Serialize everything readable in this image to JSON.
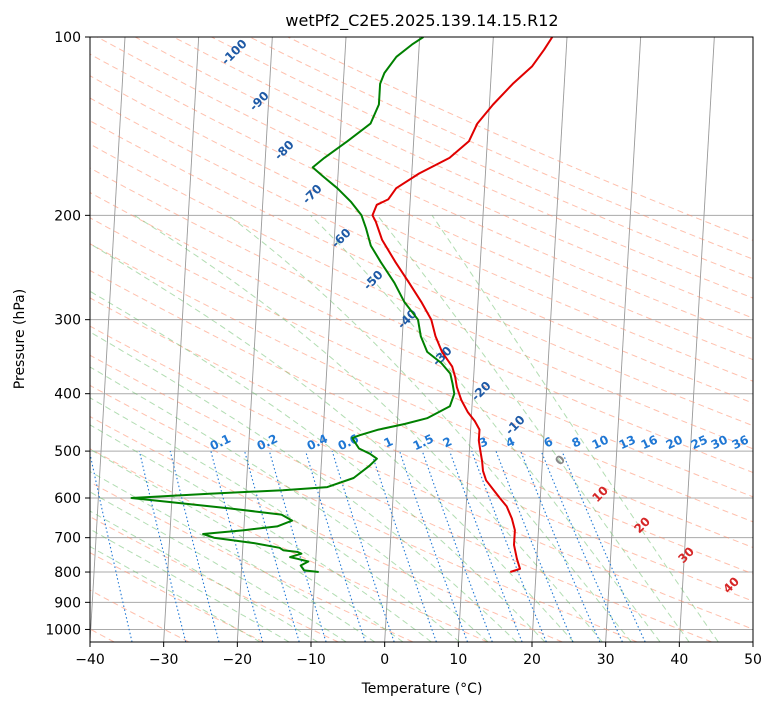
{
  "chart_data": {
    "type": "line",
    "title": "wetPf2_C2E5.2025.139.14.15.R12",
    "xlabel": "Temperature (°C)",
    "ylabel": "Pressure (hPa)",
    "xlim": [
      -40,
      50
    ],
    "ylim": [
      1050,
      100
    ],
    "y_scale": "log",
    "grid": true,
    "x_ticks": [
      -40,
      -30,
      -20,
      -10,
      0,
      10,
      20,
      30,
      40,
      50
    ],
    "y_ticks": [
      100,
      200,
      300,
      400,
      500,
      600,
      700,
      800,
      900,
      1000
    ],
    "series": [
      {
        "color": "#e00000",
        "points": [
          [
            16.5,
            800
          ],
          [
            17.8,
            790
          ],
          [
            17.3,
            760
          ],
          [
            16.8,
            720
          ],
          [
            16.8,
            680
          ],
          [
            16.3,
            650
          ],
          [
            15.5,
            620
          ],
          [
            14.5,
            600
          ],
          [
            13.5,
            580
          ],
          [
            12.5,
            560
          ],
          [
            12.0,
            540
          ],
          [
            11.8,
            520
          ],
          [
            11.5,
            500
          ],
          [
            11.2,
            480
          ],
          [
            11.2,
            460
          ],
          [
            10.5,
            445
          ],
          [
            9.5,
            430
          ],
          [
            8.5,
            410
          ],
          [
            7.8,
            390
          ],
          [
            7.5,
            375
          ],
          [
            7.0,
            360
          ],
          [
            5.5,
            340
          ],
          [
            4.5,
            320
          ],
          [
            3.8,
            300
          ],
          [
            2.3,
            280
          ],
          [
            0.5,
            260
          ],
          [
            -1.5,
            240
          ],
          [
            -3.5,
            220
          ],
          [
            -4.5,
            205
          ],
          [
            -5.0,
            200
          ],
          [
            -4.5,
            192
          ],
          [
            -3.0,
            188
          ],
          [
            -2.0,
            180
          ],
          [
            1.0,
            170
          ],
          [
            5.0,
            160
          ],
          [
            7.5,
            150
          ],
          [
            8.5,
            140
          ],
          [
            10.5,
            130
          ],
          [
            13.0,
            120
          ],
          [
            15.5,
            112
          ],
          [
            17.0,
            105
          ],
          [
            18.0,
            100
          ]
        ]
      },
      {
        "color": "#008000",
        "points": [
          [
            -9.5,
            800
          ],
          [
            -11.5,
            795
          ],
          [
            -12.0,
            780
          ],
          [
            -11.0,
            768
          ],
          [
            -12.5,
            760
          ],
          [
            -13.5,
            755
          ],
          [
            -12.0,
            745
          ],
          [
            -12.5,
            740
          ],
          [
            -14.5,
            735
          ],
          [
            -15.0,
            728
          ],
          [
            -18.5,
            715
          ],
          [
            -24.0,
            700
          ],
          [
            -25.5,
            690
          ],
          [
            -20.0,
            680
          ],
          [
            -15.5,
            670
          ],
          [
            -13.5,
            655
          ],
          [
            -15.0,
            640
          ],
          [
            -22.0,
            625
          ],
          [
            -30.0,
            610
          ],
          [
            -35.5,
            600
          ],
          [
            -25.0,
            590
          ],
          [
            -15.0,
            582
          ],
          [
            -9.0,
            575
          ],
          [
            -5.5,
            555
          ],
          [
            -3.5,
            530
          ],
          [
            -2.5,
            515
          ],
          [
            -3.5,
            505
          ],
          [
            -5.0,
            495
          ],
          [
            -5.5,
            485
          ],
          [
            -6.0,
            475
          ],
          [
            -5.0,
            470
          ],
          [
            -2.5,
            460
          ],
          [
            1.0,
            450
          ],
          [
            4.0,
            440
          ],
          [
            7.0,
            420
          ],
          [
            7.5,
            400
          ],
          [
            7.2,
            385
          ],
          [
            6.8,
            370
          ],
          [
            5.5,
            355
          ],
          [
            3.5,
            340
          ],
          [
            2.5,
            320
          ],
          [
            2.0,
            300
          ],
          [
            0.0,
            280
          ],
          [
            -1.5,
            260
          ],
          [
            -3.5,
            240
          ],
          [
            -5.0,
            225
          ],
          [
            -5.8,
            210
          ],
          [
            -6.5,
            200
          ],
          [
            -8.0,
            190
          ],
          [
            -10.0,
            180
          ],
          [
            -12.0,
            172
          ],
          [
            -13.5,
            166
          ],
          [
            -12.0,
            160
          ],
          [
            -9.0,
            150
          ],
          [
            -6.0,
            140
          ],
          [
            -5.0,
            130
          ],
          [
            -5.0,
            120
          ],
          [
            -4.5,
            115
          ],
          [
            -3.0,
            108
          ],
          [
            -1.0,
            103
          ],
          [
            0.5,
            100
          ]
        ]
      }
    ],
    "dry_adiabat_labels": [
      "-100",
      "-90",
      "-80",
      "-70",
      "-60",
      "-50",
      "-40",
      "-30",
      "-20",
      "-10"
    ],
    "mixing_ratio_labels": [
      "0.1",
      "0.2",
      "0.4",
      "0.6",
      "1",
      "1.5",
      "2",
      "3",
      "4",
      "6",
      "8",
      "10",
      "13",
      "16",
      "20",
      "25",
      "30",
      "36"
    ],
    "moist_adiabat_labels": [
      "0",
      "10",
      "20",
      "30",
      "40"
    ],
    "colors": {
      "temperature": "#e00000",
      "dewpoint": "#008000",
      "dry_adiabat": "#ff8c69",
      "moist_adiabat": "#66bb66",
      "mixing_ratio": "#1f77d4",
      "isotherm": "#999999",
      "isobar": "#aaaaaa",
      "adiabat_label": "#1f5aa6",
      "moist_label": "#d62728"
    }
  }
}
